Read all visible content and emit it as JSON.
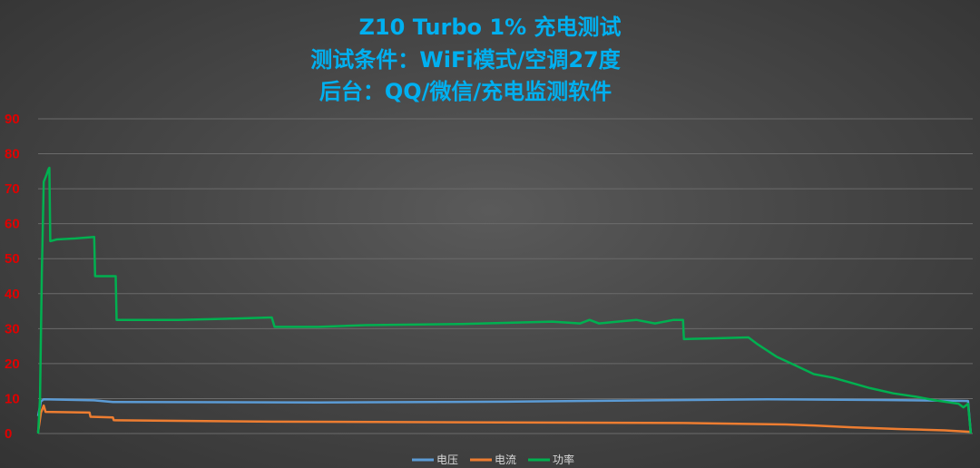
{
  "chart_data": {
    "type": "line",
    "title": [
      "Z10 Turbo 1% 充电测试",
      "测试条件：WiFi模式/空调27度",
      "后台：QQ/微信/充电监测软件"
    ],
    "ylim": [
      0,
      90
    ],
    "yticks": [
      "0",
      "10",
      "20",
      "30",
      "40",
      "50",
      "60",
      "70",
      "80",
      "90"
    ],
    "grid": true,
    "legend_position": "bottom",
    "colors": {
      "title": "#00b0f0",
      "yticks": "#e00000",
      "grid": "#6b6b6b"
    },
    "x_range": [
      0,
      1000
    ],
    "series": [
      {
        "name": "电压",
        "color": "#5b9bd5",
        "points": [
          [
            0,
            5
          ],
          [
            3,
            9.2
          ],
          [
            6,
            9.8
          ],
          [
            60,
            9.5
          ],
          [
            80,
            9.0
          ],
          [
            300,
            8.9
          ],
          [
            500,
            9.1
          ],
          [
            700,
            9.6
          ],
          [
            780,
            9.8
          ],
          [
            900,
            9.6
          ],
          [
            970,
            9.4
          ],
          [
            995,
            9.3
          ],
          [
            998,
            0
          ]
        ]
      },
      {
        "name": "电流",
        "color": "#ed7d31",
        "points": [
          [
            0,
            0.5
          ],
          [
            3,
            6
          ],
          [
            6,
            8.0
          ],
          [
            8,
            6.2
          ],
          [
            55,
            6.0
          ],
          [
            56,
            4.8
          ],
          [
            80,
            4.6
          ],
          [
            81,
            3.8
          ],
          [
            250,
            3.4
          ],
          [
            690,
            3.0
          ],
          [
            800,
            2.6
          ],
          [
            830,
            2.3
          ],
          [
            870,
            1.8
          ],
          [
            920,
            1.3
          ],
          [
            970,
            0.9
          ],
          [
            997,
            0.5
          ]
        ]
      },
      {
        "name": "功率",
        "color": "#00b050",
        "points": [
          [
            0,
            0
          ],
          [
            2,
            10
          ],
          [
            4,
            46
          ],
          [
            6,
            72
          ],
          [
            9,
            74
          ],
          [
            11,
            75.5
          ],
          [
            12,
            76
          ],
          [
            13,
            55
          ],
          [
            20,
            55.5
          ],
          [
            40,
            55.8
          ],
          [
            60,
            56.2
          ],
          [
            61,
            45
          ],
          [
            83,
            45
          ],
          [
            84,
            32.5
          ],
          [
            150,
            32.5
          ],
          [
            200,
            32.8
          ],
          [
            250,
            33.2
          ],
          [
            253,
            30.5
          ],
          [
            300,
            30.5
          ],
          [
            350,
            31
          ],
          [
            450,
            31.3
          ],
          [
            550,
            32
          ],
          [
            580,
            31.5
          ],
          [
            590,
            32.5
          ],
          [
            600,
            31.5
          ],
          [
            620,
            32
          ],
          [
            640,
            32.5
          ],
          [
            660,
            31.5
          ],
          [
            680,
            32.5
          ],
          [
            690,
            32.5
          ],
          [
            691,
            27
          ],
          [
            720,
            27.2
          ],
          [
            760,
            27.5
          ],
          [
            770,
            25.5
          ],
          [
            790,
            22
          ],
          [
            810,
            19.5
          ],
          [
            830,
            17
          ],
          [
            850,
            16
          ],
          [
            870,
            14.5
          ],
          [
            890,
            13
          ],
          [
            915,
            11.5
          ],
          [
            940,
            10.5
          ],
          [
            960,
            9.5
          ],
          [
            985,
            8.5
          ],
          [
            990,
            7.5
          ],
          [
            995,
            8.5
          ],
          [
            998,
            0
          ]
        ]
      }
    ]
  }
}
